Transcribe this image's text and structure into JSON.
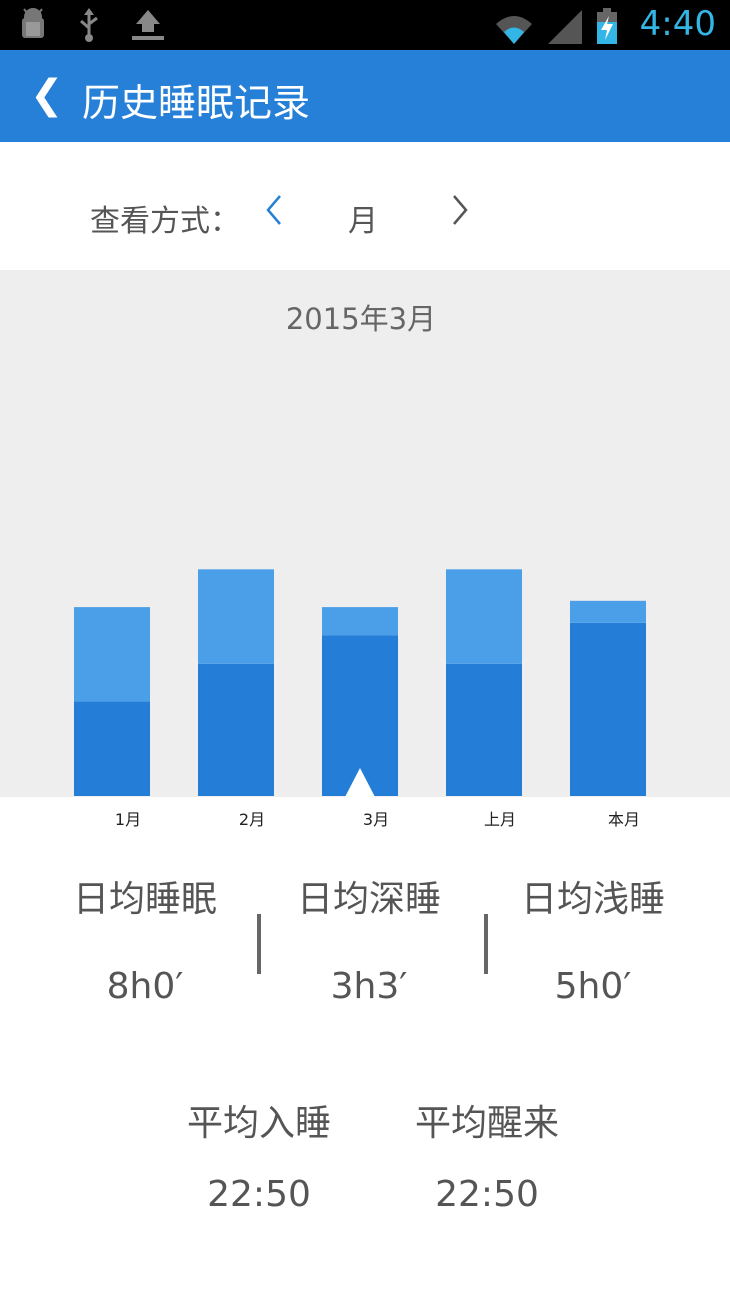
{
  "status_bar": {
    "time": "4:40",
    "icons": [
      "android-debug-icon",
      "usb-icon",
      "upload-icon",
      "wifi-icon",
      "signal-icon",
      "battery-charging-icon"
    ]
  },
  "app_bar": {
    "back_glyph": "❮",
    "title": "历史睡眠记录"
  },
  "view_mode": {
    "label": "查看方式：",
    "prev_glyph": "<",
    "value": "月",
    "next_glyph": ">"
  },
  "colors": {
    "primary": "#2680d8",
    "deep_sleep": "#247dd6",
    "light_sleep": "#4a9fe8",
    "chart_bg": "#eeeeee"
  },
  "chart_data": {
    "type": "bar",
    "stacked": true,
    "title": "2015年3月",
    "categories": [
      "1月",
      "2月",
      "3月",
      "上月",
      "本月"
    ],
    "series": [
      {
        "values": [
          3.0,
          4.2,
          5.1,
          4.2,
          5.5
        ]
      },
      {
        "values": [
          3.0,
          3.0,
          0.9,
          3.0,
          0.7
        ]
      }
    ],
    "ylim": [
      0,
      10.8
    ],
    "selected_index": 2,
    "grid": false
  },
  "stats": {
    "avg_sleep": {
      "label": "日均睡眠",
      "value": "8h0′"
    },
    "avg_deep": {
      "label": "日均深睡",
      "value": "3h3′"
    },
    "avg_light": {
      "label": "日均浅睡",
      "value": "5h0′"
    },
    "avg_bedtime": {
      "label": "平均入睡",
      "value": "22:50"
    },
    "avg_wake": {
      "label": "平均醒来",
      "value": "22:50"
    }
  }
}
